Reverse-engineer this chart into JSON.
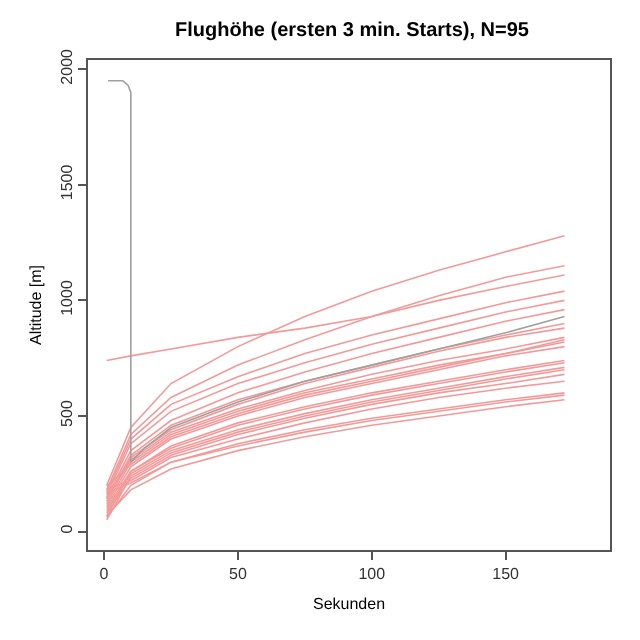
{
  "chart_data": {
    "type": "line",
    "title": "Flughöhe (ersten 3 min. Starts), N=95",
    "xlabel": "Sekunden",
    "ylabel": "Altitude [m]",
    "x": [
      1,
      10,
      25,
      50,
      75,
      100,
      125,
      150,
      172
    ],
    "xlim": [
      -6,
      189
    ],
    "xticks": [
      0,
      50,
      100,
      150
    ],
    "ylim": [
      -80,
      2040
    ],
    "yticks": [
      0,
      500,
      1000,
      1500,
      2000
    ],
    "grid": false,
    "marker": "none",
    "line_style": "solid",
    "series": [
      {
        "color": "#f29a9a",
        "values": [
          80,
          230,
          330,
          420,
          490,
          550,
          600,
          640,
          680
        ]
      },
      {
        "color": "#f29a9a",
        "values": [
          100,
          260,
          370,
          470,
          540,
          600,
          650,
          700,
          740
        ]
      },
      {
        "color": "#f29a9a",
        "values": [
          60,
          200,
          300,
          380,
          440,
          490,
          530,
          570,
          600
        ]
      },
      {
        "color": "#f29a9a",
        "values": [
          120,
          300,
          420,
          520,
          600,
          660,
          720,
          770,
          820
        ]
      },
      {
        "color": "#f29a9a",
        "values": [
          90,
          250,
          350,
          440,
          510,
          570,
          620,
          670,
          710
        ]
      },
      {
        "color": "#f29a9a",
        "values": [
          140,
          330,
          460,
          570,
          650,
          720,
          790,
          850,
          900
        ]
      },
      {
        "color": "#f29a9a",
        "values": [
          70,
          180,
          270,
          350,
          410,
          460,
          500,
          540,
          570
        ]
      },
      {
        "color": "#f29a9a",
        "values": [
          110,
          280,
          400,
          500,
          580,
          640,
          700,
          760,
          800
        ]
      },
      {
        "color": "#f29a9a",
        "values": [
          150,
          350,
          480,
          600,
          690,
          770,
          840,
          910,
          960
        ]
      },
      {
        "color": "#f29a9a",
        "values": [
          130,
          320,
          440,
          550,
          640,
          710,
          780,
          840,
          880
        ]
      },
      {
        "color": "#f29a9a",
        "values": [
          50,
          240,
          340,
          430,
          500,
          560,
          610,
          660,
          700
        ]
      },
      {
        "color": "#f29a9a",
        "values": [
          160,
          380,
          520,
          640,
          730,
          810,
          880,
          950,
          1000
        ]
      },
      {
        "color": "#f29a9a",
        "values": [
          185,
          220,
          320,
          400,
          470,
          530,
          580,
          620,
          650
        ]
      },
      {
        "color": "#f29a9a",
        "values": [
          195,
          290,
          410,
          510,
          590,
          650,
          710,
          770,
          830
        ]
      },
      {
        "color": "#f29a9a",
        "values": [
          170,
          400,
          550,
          670,
          770,
          850,
          920,
          990,
          1040
        ]
      },
      {
        "color": "#f29a9a",
        "values": [
          180,
          420,
          580,
          720,
          830,
          930,
          1020,
          1100,
          1150
        ]
      },
      {
        "color": "#f29a9a",
        "values": [
          200,
          450,
          640,
          800,
          930,
          1040,
          1130,
          1210,
          1280
        ]
      },
      {
        "color": "#f29a9a",
        "values": [
          740,
          760,
          790,
          840,
          880,
          930,
          1000,
          1060,
          1110
        ]
      },
      {
        "color": "#f29a9a",
        "values": [
          65,
          260,
          360,
          460,
          530,
          590,
          640,
          690,
          730
        ]
      },
      {
        "color": "#f29a9a",
        "values": [
          165,
          210,
          300,
          370,
          430,
          480,
          520,
          560,
          590
        ]
      },
      {
        "color": "#f29a9a",
        "values": [
          145,
          310,
          430,
          530,
          610,
          680,
          740,
          790,
          840
        ]
      },
      {
        "color": "#a0a0a0",
        "x": [
          1.5,
          7,
          9,
          10,
          10,
          15,
          25,
          50,
          75,
          100,
          125,
          150,
          172
        ],
        "values": [
          1950,
          1950,
          1930,
          1900,
          300,
          360,
          450,
          560,
          650,
          720,
          790,
          860,
          930
        ]
      }
    ]
  }
}
